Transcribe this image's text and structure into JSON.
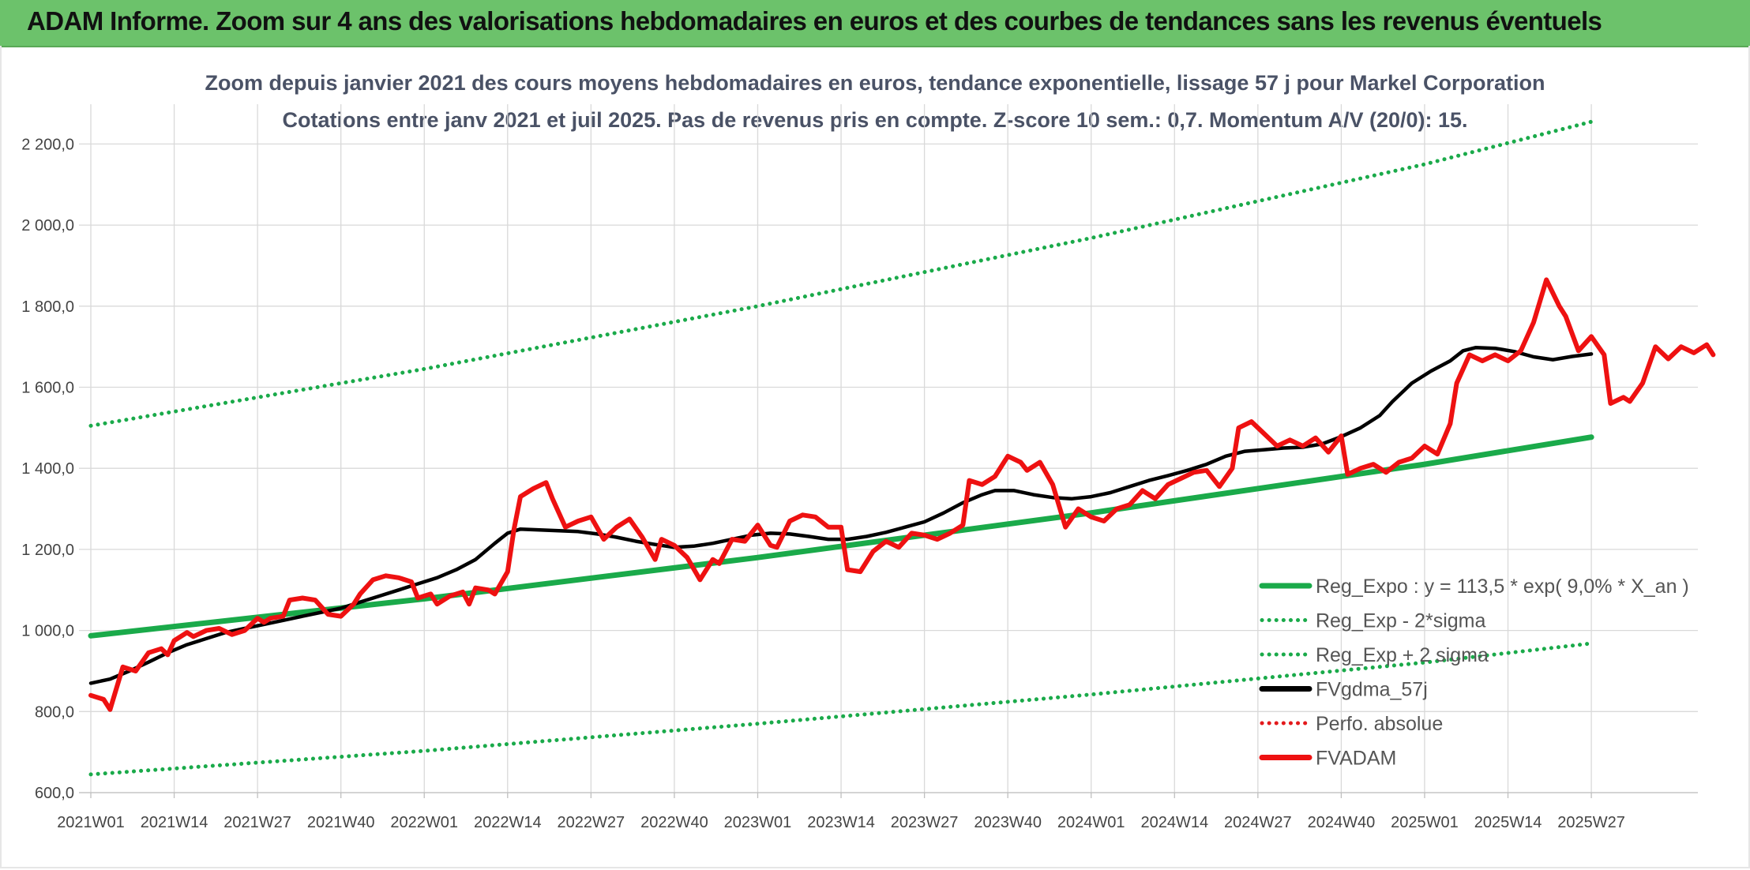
{
  "banner": {
    "title": "ADAM Informe. Zoom sur 4 ans des valorisations hebdomadaires en euros et des courbes de tendances sans les revenus éventuels"
  },
  "chart_data": {
    "type": "line",
    "title": "Zoom depuis janvier 2021 des cours moyens hebdomadaires en euros, tendance exponentielle, lissage 57 j pour Markel Corporation",
    "subtitle": "Cotations entre janv 2021 et juil 2025. Pas de revenus pris en compte. Z-score 10 sem.: 0,7. Momentum A/V (20/0): 15.",
    "xlabel": "",
    "ylabel": "",
    "ylim": [
      600,
      2300
    ],
    "y_ticks": [
      600,
      800,
      1000,
      1200,
      1400,
      1600,
      1800,
      2000,
      2200
    ],
    "y_tick_labels": [
      "600,0",
      "800,0",
      "1 000,0",
      "1 200,0",
      "1 400,0",
      "1 600,0",
      "1 800,0",
      "2 000,0",
      "2 200,0"
    ],
    "x_tick_labels": [
      "2021W01",
      "2021W14",
      "2021W27",
      "2021W40",
      "2022W01",
      "2022W14",
      "2022W27",
      "2022W40",
      "2023W01",
      "2023W14",
      "2023W27",
      "2023W40",
      "2024W01",
      "2024W14",
      "2024W27",
      "2024W40",
      "2025W01",
      "2025W14",
      "2025W27"
    ],
    "x_week_index_of_ticks": [
      0,
      13,
      26,
      39,
      52,
      65,
      78,
      91,
      104,
      117,
      130,
      143,
      156,
      169,
      182,
      195,
      208,
      221,
      234
    ],
    "grid": true,
    "legend_position": "bottom-right",
    "series": [
      {
        "name": "Reg_Expo : y = 113,5 * exp( 9,0% *  X_an )",
        "color": "#1aaa4a",
        "style": "solid",
        "points": [
          [
            0,
            987
          ],
          [
            52,
            1078
          ],
          [
            104,
            1180
          ],
          [
            156,
            1290
          ],
          [
            208,
            1410
          ],
          [
            234,
            1477
          ]
        ]
      },
      {
        "name": "Reg_Exp - 2*sigma",
        "color": "#1aaa4a",
        "style": "dotted",
        "points": [
          [
            0,
            645
          ],
          [
            52,
            703
          ],
          [
            104,
            770
          ],
          [
            156,
            842
          ],
          [
            208,
            921
          ],
          [
            234,
            968
          ]
        ]
      },
      {
        "name": "Reg_Exp + 2 sigma",
        "color": "#1aaa4a",
        "style": "dotted",
        "points": [
          [
            0,
            1505
          ],
          [
            52,
            1645
          ],
          [
            104,
            1800
          ],
          [
            156,
            1968
          ],
          [
            208,
            2150
          ],
          [
            234,
            2255
          ]
        ]
      },
      {
        "name": "FVgdma_57j",
        "color": "#000000",
        "style": "solid",
        "points": [
          [
            0,
            870
          ],
          [
            3,
            880
          ],
          [
            6,
            900
          ],
          [
            9,
            922
          ],
          [
            12,
            945
          ],
          [
            15,
            965
          ],
          [
            18,
            980
          ],
          [
            21,
            995
          ],
          [
            24,
            1005
          ],
          [
            27,
            1015
          ],
          [
            30,
            1025
          ],
          [
            33,
            1035
          ],
          [
            36,
            1045
          ],
          [
            39,
            1055
          ],
          [
            42,
            1070
          ],
          [
            45,
            1085
          ],
          [
            48,
            1100
          ],
          [
            51,
            1115
          ],
          [
            54,
            1130
          ],
          [
            57,
            1150
          ],
          [
            60,
            1175
          ],
          [
            63,
            1215
          ],
          [
            65,
            1240
          ],
          [
            67,
            1250
          ],
          [
            70,
            1248
          ],
          [
            73,
            1246
          ],
          [
            76,
            1244
          ],
          [
            79,
            1238
          ],
          [
            82,
            1230
          ],
          [
            85,
            1220
          ],
          [
            88,
            1212
          ],
          [
            91,
            1205
          ],
          [
            94,
            1208
          ],
          [
            97,
            1215
          ],
          [
            100,
            1225
          ],
          [
            103,
            1235
          ],
          [
            106,
            1240
          ],
          [
            109,
            1238
          ],
          [
            112,
            1232
          ],
          [
            115,
            1225
          ],
          [
            118,
            1225
          ],
          [
            121,
            1232
          ],
          [
            124,
            1242
          ],
          [
            127,
            1255
          ],
          [
            130,
            1268
          ],
          [
            133,
            1290
          ],
          [
            136,
            1315
          ],
          [
            139,
            1335
          ],
          [
            141,
            1345
          ],
          [
            144,
            1345
          ],
          [
            147,
            1335
          ],
          [
            150,
            1328
          ],
          [
            153,
            1325
          ],
          [
            156,
            1330
          ],
          [
            159,
            1340
          ],
          [
            162,
            1355
          ],
          [
            165,
            1370
          ],
          [
            168,
            1382
          ],
          [
            171,
            1395
          ],
          [
            174,
            1410
          ],
          [
            177,
            1430
          ],
          [
            180,
            1442
          ],
          [
            183,
            1446
          ],
          [
            186,
            1450
          ],
          [
            189,
            1452
          ],
          [
            192,
            1460
          ],
          [
            195,
            1478
          ],
          [
            198,
            1500
          ],
          [
            201,
            1530
          ],
          [
            203,
            1565
          ],
          [
            206,
            1610
          ],
          [
            209,
            1640
          ],
          [
            212,
            1665
          ],
          [
            214,
            1690
          ],
          [
            216,
            1698
          ],
          [
            219,
            1696
          ],
          [
            222,
            1688
          ],
          [
            225,
            1675
          ],
          [
            228,
            1668
          ],
          [
            231,
            1676
          ],
          [
            234,
            1682
          ]
        ]
      },
      {
        "name": "Perfo. absolue",
        "color": "#e31a1c",
        "style": "dotted",
        "points": []
      },
      {
        "name": "FVADAM",
        "color": "#ee1111",
        "style": "solid",
        "points": [
          [
            0,
            840
          ],
          [
            2,
            830
          ],
          [
            3,
            805
          ],
          [
            5,
            910
          ],
          [
            7,
            900
          ],
          [
            9,
            945
          ],
          [
            11,
            955
          ],
          [
            12,
            940
          ],
          [
            13,
            975
          ],
          [
            15,
            995
          ],
          [
            16,
            985
          ],
          [
            18,
            1000
          ],
          [
            20,
            1005
          ],
          [
            22,
            990
          ],
          [
            24,
            1000
          ],
          [
            26,
            1030
          ],
          [
            27,
            1020
          ],
          [
            28,
            1030
          ],
          [
            30,
            1035
          ],
          [
            31,
            1075
          ],
          [
            33,
            1080
          ],
          [
            35,
            1075
          ],
          [
            37,
            1040
          ],
          [
            39,
            1035
          ],
          [
            41,
            1065
          ],
          [
            42,
            1090
          ],
          [
            44,
            1125
          ],
          [
            46,
            1135
          ],
          [
            48,
            1130
          ],
          [
            50,
            1120
          ],
          [
            51,
            1080
          ],
          [
            53,
            1090
          ],
          [
            54,
            1065
          ],
          [
            56,
            1085
          ],
          [
            58,
            1095
          ],
          [
            59,
            1065
          ],
          [
            60,
            1105
          ],
          [
            62,
            1100
          ],
          [
            63,
            1090
          ],
          [
            65,
            1145
          ],
          [
            66,
            1250
          ],
          [
            67,
            1330
          ],
          [
            69,
            1350
          ],
          [
            71,
            1365
          ],
          [
            72,
            1325
          ],
          [
            74,
            1255
          ],
          [
            76,
            1270
          ],
          [
            78,
            1280
          ],
          [
            80,
            1225
          ],
          [
            82,
            1255
          ],
          [
            84,
            1275
          ],
          [
            86,
            1230
          ],
          [
            88,
            1175
          ],
          [
            89,
            1225
          ],
          [
            91,
            1210
          ],
          [
            93,
            1180
          ],
          [
            95,
            1125
          ],
          [
            97,
            1175
          ],
          [
            98,
            1165
          ],
          [
            100,
            1225
          ],
          [
            102,
            1220
          ],
          [
            104,
            1260
          ],
          [
            106,
            1210
          ],
          [
            107,
            1205
          ],
          [
            109,
            1270
          ],
          [
            111,
            1285
          ],
          [
            113,
            1280
          ],
          [
            115,
            1255
          ],
          [
            117,
            1255
          ],
          [
            118,
            1150
          ],
          [
            120,
            1145
          ],
          [
            122,
            1195
          ],
          [
            124,
            1220
          ],
          [
            126,
            1205
          ],
          [
            128,
            1240
          ],
          [
            130,
            1235
          ],
          [
            132,
            1225
          ],
          [
            134,
            1240
          ],
          [
            136,
            1260
          ],
          [
            137,
            1370
          ],
          [
            139,
            1360
          ],
          [
            141,
            1380
          ],
          [
            143,
            1430
          ],
          [
            145,
            1415
          ],
          [
            146,
            1395
          ],
          [
            148,
            1415
          ],
          [
            150,
            1360
          ],
          [
            152,
            1255
          ],
          [
            154,
            1300
          ],
          [
            156,
            1280
          ],
          [
            158,
            1270
          ],
          [
            160,
            1300
          ],
          [
            162,
            1310
          ],
          [
            164,
            1345
          ],
          [
            166,
            1325
          ],
          [
            168,
            1360
          ],
          [
            170,
            1375
          ],
          [
            172,
            1390
          ],
          [
            174,
            1395
          ],
          [
            176,
            1355
          ],
          [
            178,
            1400
          ],
          [
            179,
            1500
          ],
          [
            181,
            1515
          ],
          [
            183,
            1485
          ],
          [
            185,
            1455
          ],
          [
            187,
            1470
          ],
          [
            189,
            1455
          ],
          [
            191,
            1475
          ],
          [
            193,
            1440
          ],
          [
            195,
            1480
          ],
          [
            196,
            1385
          ],
          [
            198,
            1400
          ],
          [
            200,
            1410
          ],
          [
            202,
            1390
          ],
          [
            204,
            1415
          ],
          [
            206,
            1425
          ],
          [
            208,
            1455
          ],
          [
            210,
            1435
          ],
          [
            212,
            1510
          ],
          [
            213,
            1610
          ],
          [
            215,
            1680
          ],
          [
            217,
            1665
          ],
          [
            219,
            1680
          ],
          [
            221,
            1665
          ],
          [
            223,
            1690
          ],
          [
            225,
            1760
          ],
          [
            227,
            1865
          ],
          [
            229,
            1800
          ],
          [
            230,
            1775
          ],
          [
            232,
            1690
          ],
          [
            234,
            1725
          ],
          [
            236,
            1680
          ],
          [
            237,
            1560
          ],
          [
            239,
            1575
          ],
          [
            240,
            1565
          ],
          [
            242,
            1610
          ],
          [
            244,
            1700
          ],
          [
            246,
            1670
          ],
          [
            248,
            1700
          ],
          [
            250,
            1685
          ],
          [
            252,
            1705
          ],
          [
            253,
            1680
          ]
        ]
      }
    ]
  }
}
